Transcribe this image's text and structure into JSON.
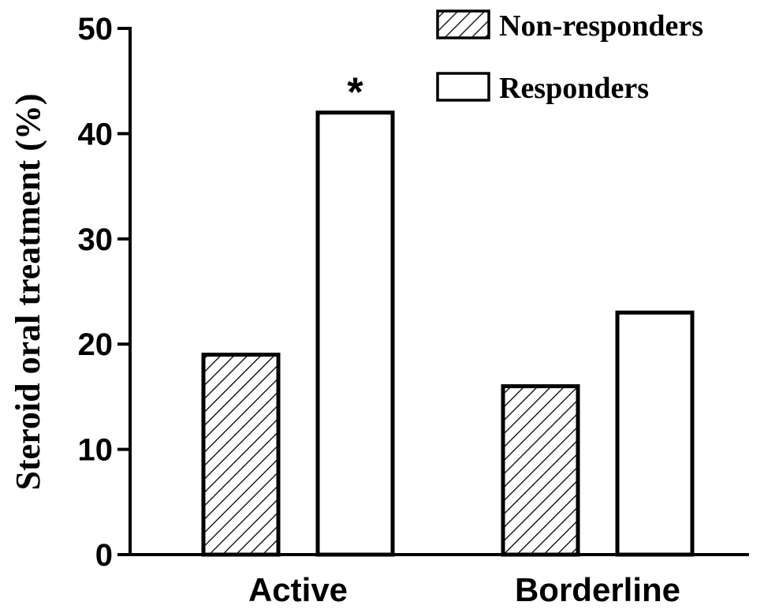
{
  "chart_data": {
    "type": "bar",
    "title": "",
    "xlabel": "",
    "ylabel": "Steroid oral treatment (%)",
    "ylim": [
      0,
      50
    ],
    "yticks": [
      "0",
      "10",
      "20",
      "30",
      "40",
      "50"
    ],
    "categories": [
      "Active",
      "Borderline"
    ],
    "series": [
      {
        "name": "Non-responders",
        "values": [
          19,
          16
        ],
        "fill": "hatched"
      },
      {
        "name": "Responders",
        "values": [
          42,
          23
        ],
        "fill": "white"
      }
    ],
    "annotations": [
      {
        "text": "*",
        "category": "Active",
        "series": "Responders"
      }
    ],
    "legend_position": "top-right",
    "grid": false
  }
}
